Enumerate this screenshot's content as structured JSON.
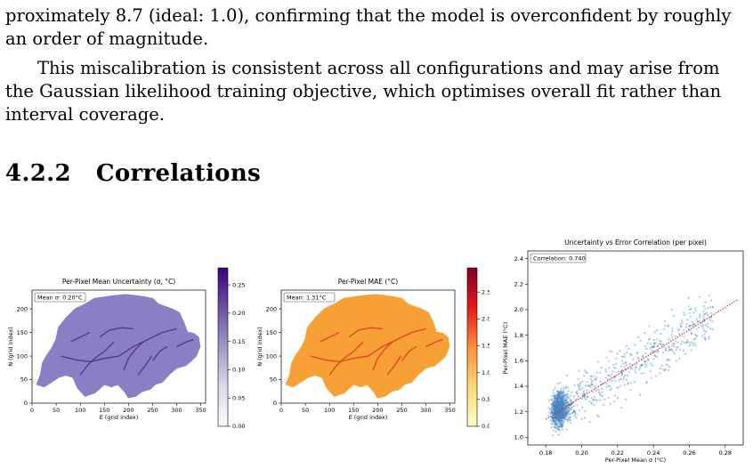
{
  "text": {
    "line1": "proximately 8.7 (ideal: 1.0), confirming that the model is overconfident by roughly",
    "line2": "an order of magnitude.",
    "para2_line1": "This miscalibration is consistent across all configurations and may arise from",
    "para2_line2": "the Gaussian likelihood training objective, which optimises overall fit rather than",
    "para2_line3": "interval coverage."
  },
  "section": {
    "number": "4.2.2",
    "title": "Correlations"
  },
  "chart_data": [
    {
      "type": "heatmap",
      "title": "Per-Pixel Mean Uncertainty (σ, °C)",
      "xlabel": "E (grid index)",
      "ylabel": "N (grid index)",
      "xticks": [
        "0",
        "50",
        "100",
        "150",
        "200",
        "250",
        "300",
        "350"
      ],
      "yticks": [
        "0",
        "50",
        "100",
        "150",
        "200"
      ],
      "xlim": [
        0,
        360
      ],
      "ylim": [
        0,
        240
      ],
      "annotation": "Mean σ: 0.20°C",
      "colorbar": {
        "ticks": [
          "0.00",
          "0.05",
          "0.10",
          "0.15",
          "0.20",
          "0.25"
        ],
        "range": [
          0,
          0.28
        ],
        "cmap": "Purples"
      },
      "fill_color": "#8a7fc4",
      "ridge_color": "#4b2a8f"
    },
    {
      "type": "heatmap",
      "title": "Per-Pixel MAE (°C)",
      "xlabel": "E (grid index)",
      "ylabel": "N (grid index)",
      "xticks": [
        "0",
        "50",
        "100",
        "150",
        "200",
        "250",
        "300",
        "350"
      ],
      "yticks": [
        "0",
        "50",
        "100",
        "150",
        "200"
      ],
      "xlim": [
        0,
        360
      ],
      "ylim": [
        0,
        240
      ],
      "annotation": "Mean: 1.31°C",
      "colorbar": {
        "ticks": [
          "0.0",
          "0.5",
          "1.0",
          "1.5",
          "2.0",
          "2.5"
        ],
        "range": [
          0,
          2.95
        ],
        "cmap": "YlOrRd"
      },
      "fill_color": "#f7a035",
      "ridge_color": "#d9381e"
    },
    {
      "type": "scatter",
      "title": "Uncertainty vs Error Correlation (per pixel)",
      "xlabel": "Per-Pixel Mean σ (°C)",
      "ylabel": "Per-Pixel MAE (°C)",
      "xticks": [
        "0.18",
        "0.20",
        "0.22",
        "0.24",
        "0.26",
        "0.28"
      ],
      "yticks": [
        "1.0",
        "1.2",
        "1.4",
        "1.6",
        "1.8",
        "2.0",
        "2.2",
        "2.4"
      ],
      "xlim": [
        0.17,
        0.29
      ],
      "ylim": [
        0.94,
        2.46
      ],
      "annotation": "Correlation: 0.740",
      "trend": {
        "x": [
          0.18,
          0.287
        ],
        "y": [
          1.14,
          2.08
        ]
      },
      "cluster": {
        "x_center": 0.187,
        "y_center": 1.22
      },
      "point_color": "#4a86c0",
      "trend_color": "#d62728"
    }
  ]
}
